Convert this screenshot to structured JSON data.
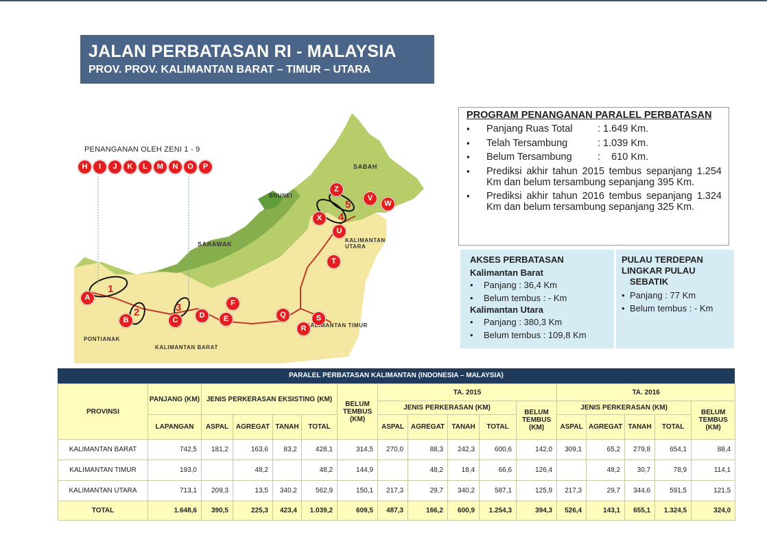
{
  "title": {
    "main": "JALAN PERBATASAN RI - MALAYSIA",
    "sub": "PROV. PROV. KALIMANTAN BARAT – TIMUR – UTARA"
  },
  "map": {
    "zeni_label": "PENANGANAN OLEH ZENI 1 - 9",
    "zeni_markers": [
      "H",
      "I",
      "J",
      "K",
      "L",
      "M",
      "N",
      "O",
      "P"
    ],
    "segment_markers": [
      "A",
      "B",
      "C",
      "D",
      "E",
      "F",
      "Q",
      "R",
      "S",
      "T",
      "U",
      "X",
      "Z",
      "V",
      "W"
    ],
    "segment_numbers": [
      "1",
      "2",
      "3",
      "4",
      "5"
    ],
    "labels": {
      "sabah": "SABAH",
      "brunei": "BRUNEI",
      "sarawak": "SARAWAK",
      "kaltara": "KALIMANTAN UTARA",
      "kaltim": "KALIMANTAN TIMUR",
      "kalbar": "KALIMANTAN BARAT",
      "pontianak": "PONTIANAK"
    },
    "colors": {
      "malaysia": "#b6cd6a",
      "brunei": "#5f9e3a",
      "indonesia": "#f4e7a1",
      "sea": "#ffffff",
      "road": "#c0392b",
      "marker": "#e21e1e"
    }
  },
  "program": {
    "title": "PROGRAM PENANGANAN PARALEL PERBATASAN",
    "items": [
      {
        "label": "Panjang Ruas Total",
        "value": ": 1.649 Km."
      },
      {
        "label": "Telah Tersambung",
        "value": ": 1.039 Km."
      },
      {
        "label": "Belum Tersambung",
        "value": ":    610 Km."
      }
    ],
    "predictions": [
      "Prediksi akhir tahun 2015 tembus sepanjang 1.254 Km dan belum tersambung sepanjang 395 Km.",
      "Prediksi akhir tahun 2016 tembus sepanjang 1.324 Km dan belum tersambung sepanjang 325 Km."
    ]
  },
  "akses": {
    "title": "AKSES PERBATASAN",
    "kalbar_title": "Kalimantan Barat",
    "kalbar_items": [
      "Panjang : 36,4 Km",
      "Belum tembus : - Km"
    ],
    "kaltara_title": "Kalimantan Utara",
    "kaltara_items": [
      "Panjang : 380,3 Km",
      "Belum tembus : 109,8 Km"
    ]
  },
  "pulau": {
    "title1": "PULAU TERDEPAN",
    "title2": "LINGKAR PULAU",
    "title3": "SEBATIK",
    "items": [
      "Panjang : 77 Km",
      "Belum tembus : - Km"
    ]
  },
  "table": {
    "banner": "PARALEL PERBATASAN KALIMANTAN (INDONESIA – MALAYSIA)",
    "headers": {
      "provinsi": "PROVINSI",
      "panjang": "PANJANG (KM)",
      "lapangan": "LAPANGAN",
      "jenis_eksisting": "JENIS PERKERASAN EKSISTING (KM)",
      "belum_tembus": "BELUM TEMBUS (KM)",
      "ta2015": "TA. 2015",
      "ta2016": "TA. 2016",
      "jenis": "JENIS PERKERASAN (KM)",
      "aspal": "ASPAL",
      "agregat": "AGREGAT",
      "tanah": "TANAH",
      "total": "TOTAL",
      "belum_tembus_2": "BELUM TEMBUS (KM)"
    },
    "rows": [
      {
        "provinsi": "KALIMANTAN BARAT",
        "lapangan": "742,5",
        "aspal": "181,2",
        "agregat": "163,6",
        "tanah": "83,2",
        "total": "428,1",
        "belum": "314,5",
        "aspal15": "270,0",
        "agregat15": "88,3",
        "tanah15": "242,3",
        "total15": "600,6",
        "belum15": "142,0",
        "aspal16": "309,1",
        "agregat16": "65,2",
        "tanah16": "279,8",
        "total16": "654,1",
        "belum16": "88,4"
      },
      {
        "provinsi": "KALIMANTAN TIMUR",
        "lapangan": "193,0",
        "aspal": "",
        "agregat": "48,2",
        "tanah": "",
        "total": "48,2",
        "belum": "144,9",
        "aspal15": "",
        "agregat15": "48,2",
        "tanah15": "18,4",
        "total15": "66,6",
        "belum15": "126,4",
        "aspal16": "",
        "agregat16": "48,2",
        "tanah16": "30,7",
        "total16": "78,9",
        "belum16": "114,1"
      },
      {
        "provinsi": "KALIMANTAN UTARA",
        "lapangan": "713,1",
        "aspal": "209,3",
        "agregat": "13,5",
        "tanah": "340,2",
        "total": "562,9",
        "belum": "150,1",
        "aspal15": "217,3",
        "agregat15": "29,7",
        "tanah15": "340,2",
        "total15": "587,1",
        "belum15": "125,9",
        "aspal16": "217,3",
        "agregat16": "29,7",
        "tanah16": "344,6",
        "total16": "591,5",
        "belum16": "121,5"
      }
    ],
    "total_row": {
      "provinsi": "TOTAL",
      "lapangan": "1.648,6",
      "aspal": "390,5",
      "agregat": "225,3",
      "tanah": "423,4",
      "total": "1.039,2",
      "belum": "609,5",
      "aspal15": "487,3",
      "agregat15": "166,2",
      "tanah15": "600,9",
      "total15": "1.254,3",
      "belum15": "394,3",
      "aspal16": "526,4",
      "agregat16": "143,1",
      "tanah16": "655,1",
      "total16": "1.324,5",
      "belum16": "324,0"
    }
  }
}
